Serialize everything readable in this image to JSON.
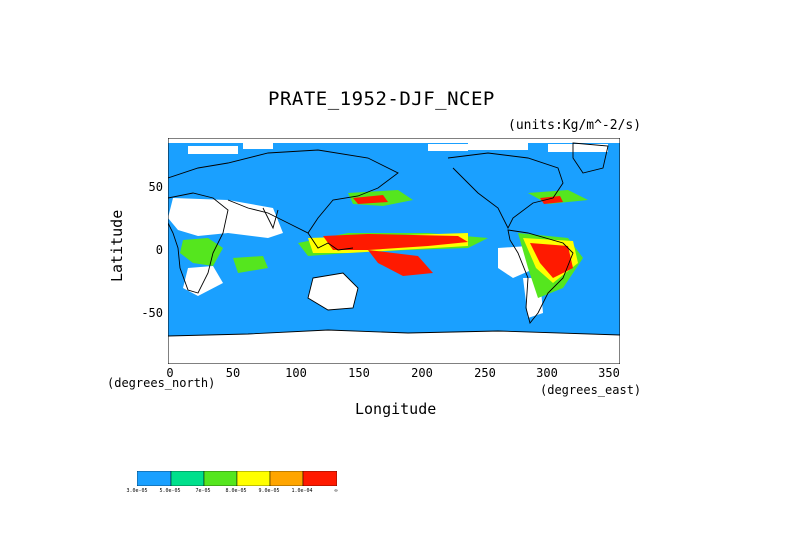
{
  "title": "PRATE_1952-DJF_NCEP",
  "units": "(units:Kg/m^-2/s)",
  "xlabel": "Longitude",
  "ylabel": "Latitude",
  "x_units_note": "(degrees_north)",
  "x_units_note2": "(degrees_east)",
  "x_ticks": [
    "0",
    "50",
    "100",
    "150",
    "200",
    "250",
    "300",
    "350"
  ],
  "y_ticks": [
    "50",
    "0",
    "-50"
  ],
  "colorbar": {
    "labels": [
      "3.0e-05",
      "5.0e-05",
      "7e-05",
      "8.0e-05",
      "9.0e-05",
      "1.0e-04",
      "∞"
    ],
    "colors": [
      "#1aa0ff",
      "#00e08c",
      "#55e61e",
      "#ffff00",
      "#ffa500",
      "#ff1a00"
    ],
    "low_color": "#ffffff"
  },
  "map": {
    "type": "gridded precipitation rate",
    "lon_range": [
      0,
      360
    ],
    "lat_range": [
      -90,
      90
    ],
    "ocean_color": "#1aa0ff",
    "coastline_color": "#000000"
  }
}
